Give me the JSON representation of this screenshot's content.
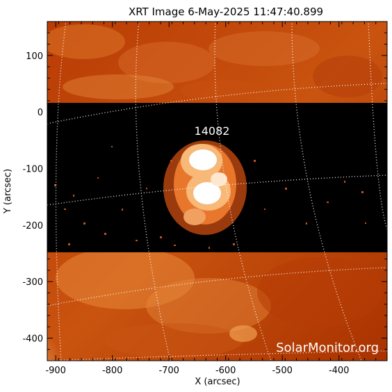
{
  "title": "XRT Image   6-May-2025 11:47:40.899",
  "axes": {
    "xlabel": "X (arcsec)",
    "ylabel": "Y (arcsec)",
    "xlim": [
      -915,
      -315
    ],
    "ylim": [
      -440,
      160
    ],
    "xticks": [
      -900,
      -800,
      -700,
      -600,
      -500,
      -400
    ],
    "yticks": [
      100,
      0,
      -100,
      -200,
      -300,
      -400
    ]
  },
  "annotation": {
    "region_label": "14082"
  },
  "watermark": "SolarMonitor.org",
  "colors": {
    "background": "#ffffff",
    "frame": "#000000",
    "corona_dark": "#a82e00",
    "corona_mid": "#d4631c",
    "corona_light": "#f09a4c",
    "gap_band": "#000000",
    "flare_core": "#ffffff",
    "grid": "#ffffff"
  }
}
